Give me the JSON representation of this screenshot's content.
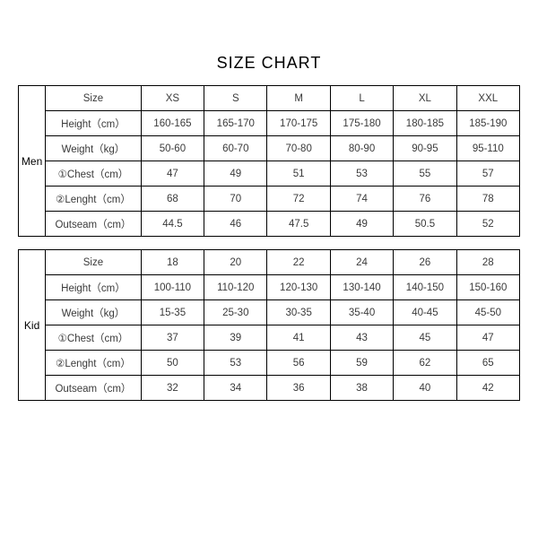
{
  "title": "SIZE CHART",
  "groups": [
    {
      "label": "Men",
      "headers": [
        "Size",
        "XS",
        "S",
        "M",
        "L",
        "XL",
        "XXL"
      ],
      "rows": [
        {
          "attr": "Height（cm）",
          "vals": [
            "160-165",
            "165-170",
            "170-175",
            "175-180",
            "180-185",
            "185-190"
          ]
        },
        {
          "attr": "Weight（kg）",
          "vals": [
            "50-60",
            "60-70",
            "70-80",
            "80-90",
            "90-95",
            "95-110"
          ]
        },
        {
          "attr": "①Chest（cm）",
          "vals": [
            "47",
            "49",
            "51",
            "53",
            "55",
            "57"
          ]
        },
        {
          "attr": "②Lenght（cm）",
          "vals": [
            "68",
            "70",
            "72",
            "74",
            "76",
            "78"
          ]
        },
        {
          "attr": "Outseam（cm）",
          "vals": [
            "44.5",
            "46",
            "47.5",
            "49",
            "50.5",
            "52"
          ]
        }
      ]
    },
    {
      "label": "Kid",
      "headers": [
        "Size",
        "18",
        "20",
        "22",
        "24",
        "26",
        "28"
      ],
      "rows": [
        {
          "attr": "Height（cm）",
          "vals": [
            "100-110",
            "110-120",
            "120-130",
            "130-140",
            "140-150",
            "150-160"
          ]
        },
        {
          "attr": "Weight（kg）",
          "vals": [
            "15-35",
            "25-30",
            "30-35",
            "35-40",
            "40-45",
            "45-50"
          ]
        },
        {
          "attr": "①Chest（cm）",
          "vals": [
            "37",
            "39",
            "41",
            "43",
            "45",
            "47"
          ]
        },
        {
          "attr": "②Lenght（cm）",
          "vals": [
            "50",
            "53",
            "56",
            "59",
            "62",
            "65"
          ]
        },
        {
          "attr": "Outseam（cm）",
          "vals": [
            "32",
            "34",
            "36",
            "38",
            "40",
            "42"
          ]
        }
      ]
    }
  ]
}
